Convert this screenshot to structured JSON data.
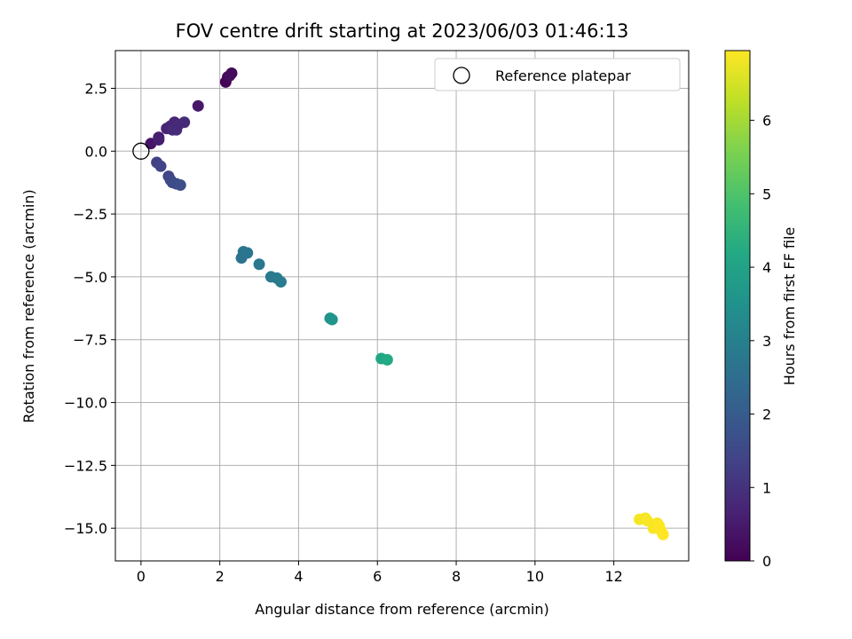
{
  "chart_data": {
    "type": "scatter",
    "title": "FOV centre drift starting at 2023/06/03 01:46:13",
    "xlabel": "Angular distance from reference (arcmin)",
    "ylabel": "Rotation from reference (arcmin)",
    "xlim": [
      -0.65,
      13.9
    ],
    "ylim": [
      -16.3,
      4.0
    ],
    "xticks": [
      0,
      2,
      4,
      6,
      8,
      10,
      12
    ],
    "yticks": [
      2.5,
      0.0,
      -2.5,
      -5.0,
      -7.5,
      -10.0,
      -12.5,
      -15.0
    ],
    "xtick_labels": [
      "0",
      "2",
      "4",
      "6",
      "8",
      "10",
      "12"
    ],
    "ytick_labels": [
      "2.5",
      "0.0",
      "−2.5",
      "−5.0",
      "−7.5",
      "−10.0",
      "−12.5",
      "−15.0"
    ],
    "grid": true,
    "legend": {
      "label": "Reference platepar",
      "placement": "top-right",
      "marker": "open-circle"
    },
    "reference_point": {
      "x": 0,
      "y": 0
    },
    "colorbar": {
      "label": "Hours from first FF file",
      "min": 0,
      "max": 6.95,
      "ticks": [
        0,
        1,
        2,
        3,
        4,
        5,
        6
      ],
      "tick_labels": [
        "0",
        "1",
        "2",
        "3",
        "4",
        "5",
        "6"
      ],
      "colormap": "viridis"
    },
    "series": [
      {
        "points": [
          {
            "x": 2.15,
            "y": 2.75,
            "c": 0.05
          },
          {
            "x": 2.2,
            "y": 2.95,
            "c": 0.1
          },
          {
            "x": 2.3,
            "y": 3.1,
            "c": 0.15
          },
          {
            "x": 2.25,
            "y": 3.0,
            "c": 0.2
          },
          {
            "x": 1.45,
            "y": 1.8,
            "c": 0.45
          },
          {
            "x": 0.25,
            "y": 0.3,
            "c": 0.4
          },
          {
            "x": 0.45,
            "y": 0.45,
            "c": 0.55
          },
          {
            "x": 0.45,
            "y": 0.55,
            "c": 0.6
          },
          {
            "x": 0.65,
            "y": 0.9,
            "c": 0.65
          },
          {
            "x": 0.75,
            "y": 1.0,
            "c": 0.7
          },
          {
            "x": 0.85,
            "y": 1.15,
            "c": 0.75
          },
          {
            "x": 0.8,
            "y": 0.85,
            "c": 0.85
          },
          {
            "x": 0.9,
            "y": 0.85,
            "c": 0.9
          },
          {
            "x": 0.95,
            "y": 1.05,
            "c": 0.8
          },
          {
            "x": 1.1,
            "y": 1.15,
            "c": 0.85
          },
          {
            "x": 0.4,
            "y": -0.45,
            "c": 1.35
          },
          {
            "x": 0.5,
            "y": -0.6,
            "c": 1.4
          },
          {
            "x": 0.7,
            "y": -1.0,
            "c": 1.45
          },
          {
            "x": 0.75,
            "y": -1.15,
            "c": 1.5
          },
          {
            "x": 0.8,
            "y": -1.25,
            "c": 1.55
          },
          {
            "x": 0.9,
            "y": -1.3,
            "c": 1.6
          },
          {
            "x": 1.0,
            "y": -1.35,
            "c": 1.65
          },
          {
            "x": 2.55,
            "y": -4.25,
            "c": 2.6
          },
          {
            "x": 2.6,
            "y": -4.0,
            "c": 2.65
          },
          {
            "x": 2.7,
            "y": -4.05,
            "c": 2.7
          },
          {
            "x": 3.0,
            "y": -4.5,
            "c": 2.75
          },
          {
            "x": 3.3,
            "y": -5.0,
            "c": 2.8
          },
          {
            "x": 3.45,
            "y": -5.05,
            "c": 2.85
          },
          {
            "x": 3.55,
            "y": -5.2,
            "c": 2.9
          },
          {
            "x": 4.8,
            "y": -6.65,
            "c": 3.55
          },
          {
            "x": 4.85,
            "y": -6.7,
            "c": 3.6
          },
          {
            "x": 6.1,
            "y": -8.25,
            "c": 4.15
          },
          {
            "x": 6.25,
            "y": -8.3,
            "c": 4.2
          },
          {
            "x": 12.65,
            "y": -14.65,
            "c": 6.85
          },
          {
            "x": 12.8,
            "y": -14.6,
            "c": 6.85
          },
          {
            "x": 12.85,
            "y": -14.7,
            "c": 6.9
          },
          {
            "x": 13.0,
            "y": -15.0,
            "c": 6.9
          },
          {
            "x": 13.1,
            "y": -14.8,
            "c": 6.9
          },
          {
            "x": 13.15,
            "y": -14.9,
            "c": 6.95
          },
          {
            "x": 13.2,
            "y": -15.1,
            "c": 6.95
          },
          {
            "x": 13.25,
            "y": -15.25,
            "c": 6.95
          }
        ]
      }
    ]
  }
}
